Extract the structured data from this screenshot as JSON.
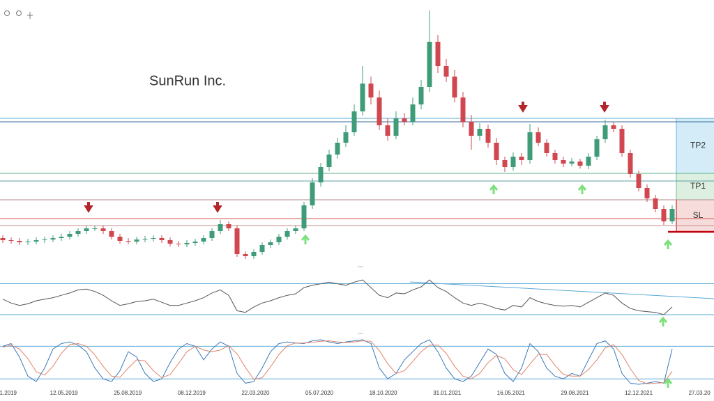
{
  "chart_data": [
    {
      "type": "candlestick",
      "title": "SunRun Inc.",
      "up_color": "#3f9c78",
      "down_color": "#d0474f",
      "open": [
        11.6,
        11,
        10.8,
        10.4,
        10.6,
        11,
        11.2,
        11.6,
        12,
        12.8,
        13.6,
        14.4,
        14.4,
        13.6,
        12,
        10.8,
        10.6,
        11.2,
        11.4,
        11.6,
        11,
        10,
        9.8,
        10.2,
        10.6,
        11.6,
        13.6,
        15.6,
        14.4,
        7,
        6.4,
        7.6,
        9.6,
        10.4,
        12,
        13.6,
        14.4,
        21,
        27.6,
        32,
        35.6,
        39,
        42,
        48,
        56,
        52,
        44,
        41,
        46,
        45,
        50,
        55,
        68,
        61,
        58,
        52,
        45,
        41,
        43,
        39,
        34,
        32,
        35,
        34,
        42,
        39,
        36,
        34,
        33,
        33.6,
        32.4,
        35,
        40,
        44,
        43,
        36,
        30,
        26,
        23,
        20,
        16.4
      ],
      "high": [
        12.4,
        11.8,
        11.6,
        11.4,
        11.8,
        12,
        12.4,
        12.8,
        13.6,
        14.4,
        15.2,
        15.2,
        15.2,
        14.4,
        12.8,
        11.6,
        12,
        12.2,
        12.4,
        12.4,
        11.8,
        10.8,
        11,
        11.4,
        12.4,
        14.4,
        16.8,
        16.4,
        15.2,
        7.8,
        8.4,
        10.4,
        11.2,
        12.8,
        14.4,
        15.2,
        22,
        28.8,
        33.2,
        37,
        40.4,
        44,
        50,
        61,
        58,
        54,
        46,
        48,
        47.6,
        52,
        57,
        77,
        70,
        63,
        60,
        53.6,
        47,
        44.6,
        44.2,
        40.4,
        35,
        36.2,
        36,
        44.4,
        43.4,
        40,
        37,
        35,
        34.6,
        34.4,
        36,
        41,
        45.6,
        45,
        44,
        37,
        31,
        27,
        24,
        21,
        21
      ],
      "low": [
        10.2,
        10,
        9.6,
        9.6,
        9.8,
        10.2,
        10.4,
        10.8,
        11.2,
        12,
        12.8,
        13.6,
        12.8,
        11.2,
        10,
        9.8,
        9.8,
        10.4,
        10.6,
        10.2,
        9.2,
        9,
        9,
        9.4,
        9.8,
        10.8,
        12.8,
        13.6,
        6.2,
        5.6,
        5.6,
        6.8,
        8.8,
        9.6,
        11.2,
        12.8,
        13.6,
        20,
        26.4,
        30.8,
        34.4,
        37.8,
        41,
        46.8,
        50,
        42.6,
        39.6,
        40,
        44,
        44,
        48.6,
        53.6,
        59,
        56.4,
        50.6,
        43.4,
        37,
        39.6,
        37.6,
        32.6,
        30.6,
        31,
        32.6,
        33,
        38,
        35,
        33,
        32,
        32.2,
        31.6,
        31.4,
        34,
        39,
        42,
        35,
        29,
        25,
        22,
        19,
        15.4,
        15.6
      ],
      "close": [
        11,
        10.8,
        10.4,
        10.6,
        11,
        11.2,
        11.6,
        12,
        12.8,
        13.6,
        14.4,
        14.4,
        13.6,
        12,
        10.8,
        10.6,
        11.2,
        11.4,
        11.6,
        11,
        10,
        9.8,
        10.2,
        10.6,
        11.6,
        13.6,
        15.6,
        14.4,
        7,
        6.4,
        7.6,
        9.6,
        10.4,
        12,
        13.6,
        14.4,
        21,
        27.6,
        32,
        35.6,
        39,
        42,
        48,
        56,
        52,
        44,
        41,
        46,
        45,
        50,
        55,
        68,
        61,
        58,
        52,
        45,
        41,
        43,
        39,
        34,
        32,
        35,
        34,
        42,
        39,
        36,
        34,
        33,
        33.6,
        32.4,
        35,
        40,
        44,
        43,
        36,
        30,
        26,
        23,
        20,
        16.4,
        20
      ],
      "levels": [
        {
          "value": 46,
          "color": "#5aa9d6"
        },
        {
          "value": 45,
          "color": "#3b6e9e"
        },
        {
          "value": 30.2,
          "color": "#5fb08a"
        },
        {
          "value": 28,
          "color": "#5f9fa0"
        },
        {
          "value": 22.6,
          "color": "#b08a8a"
        },
        {
          "value": 17.2,
          "color": "#d9534f"
        },
        {
          "value": 15.2,
          "color": "#c9898a"
        }
      ],
      "zones": [
        {
          "label": "TP2",
          "from": 46,
          "to": 30.2,
          "color": "#d3ecf8",
          "border": "#5bb8e0"
        },
        {
          "label": "TP1",
          "from": 30.2,
          "to": 22.6,
          "color": "#dcefe1",
          "border": "#6fbf8f"
        },
        {
          "label": "SL",
          "from": 22.6,
          "to": 13.4,
          "color": "#f7dcdc",
          "border": "#c0000a"
        }
      ]
    },
    {
      "type": "line",
      "series": [
        {
          "color": "#555555",
          "values": [
            50,
            45,
            42,
            44,
            48,
            50,
            52,
            55,
            58,
            62,
            63,
            60,
            55,
            48,
            42,
            44,
            47,
            48,
            50,
            46,
            42,
            42,
            45,
            48,
            52,
            58,
            62,
            55,
            35,
            33,
            40,
            45,
            48,
            52,
            55,
            57,
            65,
            68,
            70,
            72,
            70,
            68,
            72,
            75,
            65,
            55,
            52,
            58,
            57,
            62,
            66,
            75,
            65,
            60,
            52,
            45,
            42,
            45,
            42,
            38,
            36,
            42,
            40,
            52,
            47,
            44,
            42,
            41,
            42,
            40,
            46,
            52,
            58,
            55,
            45,
            38,
            35,
            34,
            33,
            30,
            40
          ]
        }
      ],
      "levels": [
        {
          "value": 70,
          "color": "#5aa9d6"
        },
        {
          "value": 30,
          "color": "#5aa9d6"
        }
      ]
    },
    {
      "type": "line",
      "series": [
        {
          "color": "#3b78b8",
          "values": [
            80,
            85,
            60,
            25,
            15,
            40,
            75,
            85,
            88,
            82,
            70,
            40,
            20,
            15,
            35,
            70,
            60,
            30,
            15,
            20,
            50,
            75,
            85,
            80,
            55,
            75,
            88,
            80,
            30,
            12,
            15,
            40,
            70,
            85,
            88,
            86,
            85,
            90,
            92,
            88,
            85,
            88,
            90,
            92,
            85,
            40,
            20,
            30,
            55,
            70,
            85,
            92,
            70,
            40,
            20,
            15,
            25,
            50,
            75,
            65,
            30,
            15,
            40,
            85,
            70,
            40,
            25,
            20,
            30,
            25,
            55,
            85,
            90,
            75,
            30,
            12,
            10,
            12,
            15,
            12,
            75
          ]
        },
        {
          "color": "#e0836a",
          "values": [
            78,
            82,
            75,
            57,
            33,
            27,
            43,
            67,
            83,
            85,
            80,
            64,
            43,
            25,
            23,
            40,
            55,
            53,
            35,
            22,
            28,
            48,
            70,
            80,
            73,
            70,
            73,
            81,
            66,
            41,
            19,
            22,
            42,
            65,
            81,
            86,
            86,
            87,
            89,
            90,
            88,
            87,
            88,
            90,
            89,
            72,
            48,
            30,
            35,
            52,
            70,
            82,
            82,
            67,
            43,
            25,
            20,
            30,
            50,
            63,
            57,
            37,
            28,
            47,
            65,
            65,
            45,
            28,
            25,
            25,
            37,
            55,
            77,
            83,
            65,
            39,
            17,
            11,
            12,
            13,
            34
          ]
        }
      ],
      "levels": [
        {
          "value": 80,
          "color": "#5aa9d6"
        },
        {
          "value": 20,
          "color": "#5aa9d6"
        }
      ],
      "x_labels": [
        "1.2019",
        "12.05.2019",
        "25.08.2019",
        "08.12.2019",
        "22.03.2020",
        "05.07.2020",
        "18.10.2020",
        "31.01.2021",
        "16.05.2021",
        "29.08.2021",
        "12.12.2021",
        "27.03.20"
      ]
    }
  ]
}
